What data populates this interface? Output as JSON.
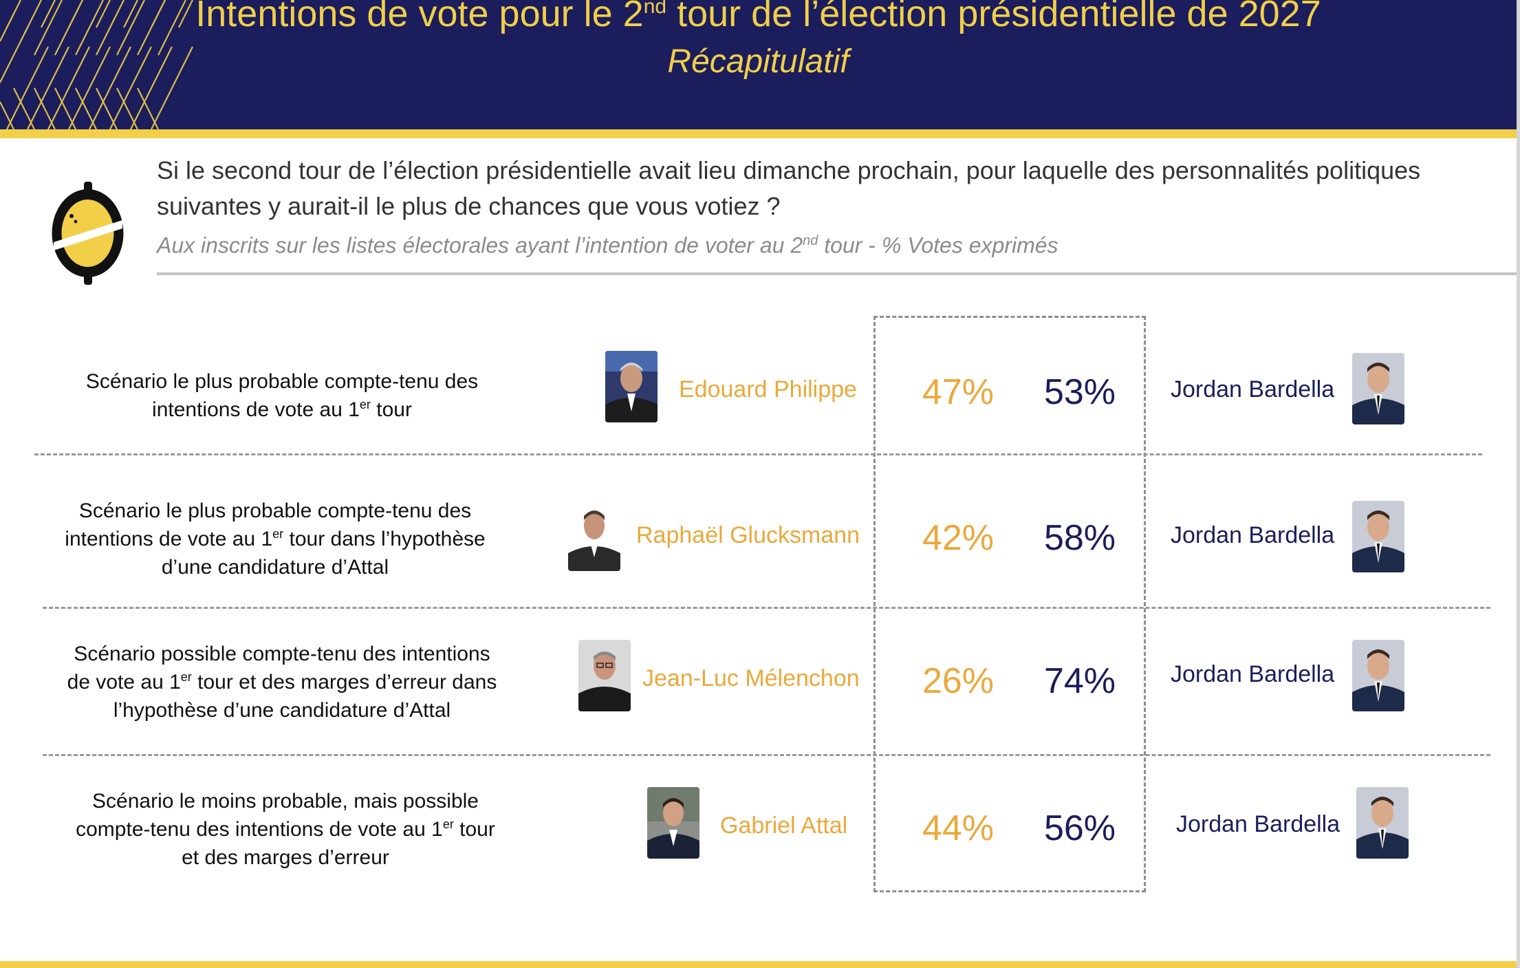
{
  "header": {
    "title_pre": "Intentions de vote pour le 2",
    "title_sup": "nd",
    "title_post": " tour de l’élection présidentielle de 2027",
    "subtitle": "Récapitulatif"
  },
  "question": {
    "text": "Si le second tour de l’élection présidentielle avait lieu dimanche prochain, pour laquelle des personnalités politiques suivantes y aurait-il le plus de chances que vous votiez ?",
    "note_pre": "Aux inscrits sur les listes électorales ayant l’intention de voter au 2",
    "note_sup": "nd",
    "note_post": " tour  - % Votes exprimés"
  },
  "colors": {
    "navy": "#1b1d5c",
    "gold": "#f1cf48",
    "orange": "#eba83a"
  },
  "scenarios": [
    {
      "lines": [
        "Scénario le plus probable compte-tenu des",
        "intentions de vote au 1",
        "er",
        " tour"
      ],
      "candidate": "Edouard Philippe",
      "candidate_pct": "47%",
      "opponent_pct": "53%",
      "opponent": "Jordan Bardella"
    },
    {
      "lines": [
        "Scénario le plus probable compte-tenu des",
        "intentions de vote au 1",
        "er",
        " tour dans l’hypothèse",
        "d’une candidature d’Attal"
      ],
      "candidate": "Raphaël Glucksmann",
      "candidate_pct": "42%",
      "opponent_pct": "58%",
      "opponent": "Jordan Bardella"
    },
    {
      "lines": [
        "Scénario possible compte-tenu des intentions",
        "de vote au 1",
        "er",
        " tour et des marges d’erreur dans",
        "l’hypothèse d’une candidature d’Attal"
      ],
      "candidate": "Jean-Luc Mélenchon",
      "candidate_pct": "26%",
      "opponent_pct": "74%",
      "opponent": "Jordan Bardella"
    },
    {
      "lines": [
        "Scénario le moins probable, mais possible",
        "compte-tenu des intentions de vote au 1",
        "er",
        " tour",
        "et des marges d’erreur"
      ],
      "candidate": "Gabriel Attal",
      "candidate_pct": "44%",
      "opponent_pct": "56%",
      "opponent": "Jordan Bardella"
    }
  ]
}
